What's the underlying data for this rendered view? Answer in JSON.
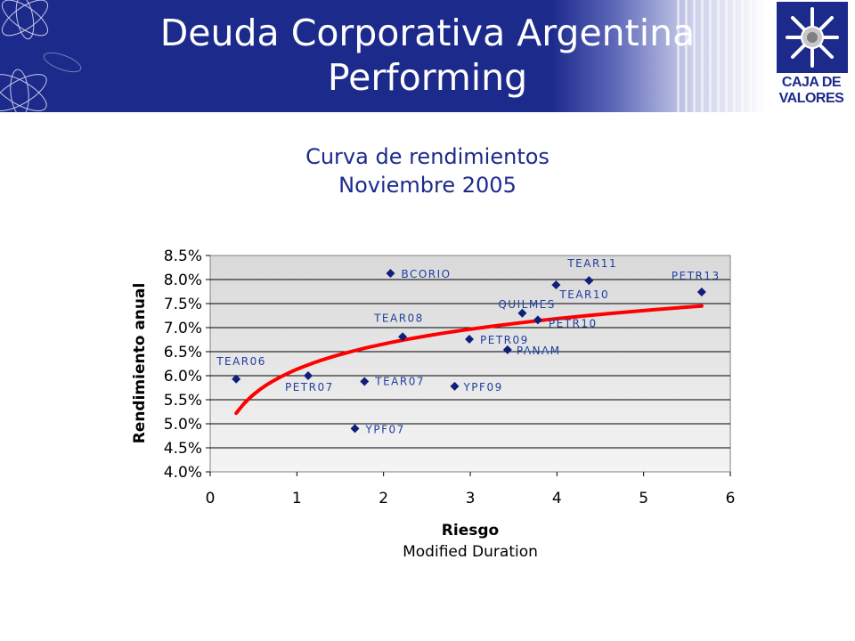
{
  "header": {
    "title_line1": "Deuda Corporativa Argentina",
    "title_line2": "Performing",
    "logo_line1": "CAJA DE",
    "logo_line2": "VALORES"
  },
  "colors": {
    "banner": "#1c2a8c",
    "title_text": "#1c2a8c",
    "marker": "#0f1f7a",
    "point_label": "#1f3fa0",
    "curve": "#ff0000",
    "plot_bg_top": "#d9d9d9",
    "plot_bg_bottom": "#f4f4f4"
  },
  "chart_data": {
    "type": "scatter",
    "title": "Curva de rendimientos",
    "subtitle": "Noviembre 2005",
    "xlabel": "Riesgo",
    "xlabel_sub": "Modified Duration",
    "ylabel": "Rendimiento anual",
    "xlim": [
      0,
      6
    ],
    "ylim": [
      4.0,
      8.5
    ],
    "xticks": [
      "0",
      "1",
      "2",
      "3",
      "4",
      "5",
      "6"
    ],
    "yticks": [
      "4.0%",
      "4.5%",
      "5.0%",
      "5.5%",
      "6.0%",
      "6.5%",
      "7.0%",
      "7.5%",
      "8.0%",
      "8.5%"
    ],
    "grid": "horizontal",
    "points": [
      {
        "label": "TEAR06",
        "x": 0.3,
        "y": 5.93
      },
      {
        "label": "PETR07",
        "x": 1.13,
        "y": 6.0
      },
      {
        "label": "YPF07",
        "x": 1.67,
        "y": 4.9
      },
      {
        "label": "TEAR07",
        "x": 1.78,
        "y": 5.88
      },
      {
        "label": "BCORIO",
        "x": 2.08,
        "y": 8.13
      },
      {
        "label": "TEAR08",
        "x": 2.22,
        "y": 6.81
      },
      {
        "label": "YPF09",
        "x": 2.82,
        "y": 5.78
      },
      {
        "label": "PETR09",
        "x": 2.99,
        "y": 6.76
      },
      {
        "label": "PANAM",
        "x": 3.43,
        "y": 6.54
      },
      {
        "label": "QUILMES",
        "x": 3.6,
        "y": 7.3
      },
      {
        "label": "PETR10",
        "x": 3.78,
        "y": 7.16
      },
      {
        "label": "TEAR10",
        "x": 3.99,
        "y": 7.89
      },
      {
        "label": "TEAR11",
        "x": 4.37,
        "y": 7.98
      },
      {
        "label": "PETR13",
        "x": 5.67,
        "y": 7.74
      }
    ],
    "trend_curve": {
      "type": "logarithmic",
      "x_start": 0.3,
      "x_end": 5.67,
      "y_start": 5.22,
      "y_end": 7.45
    }
  }
}
